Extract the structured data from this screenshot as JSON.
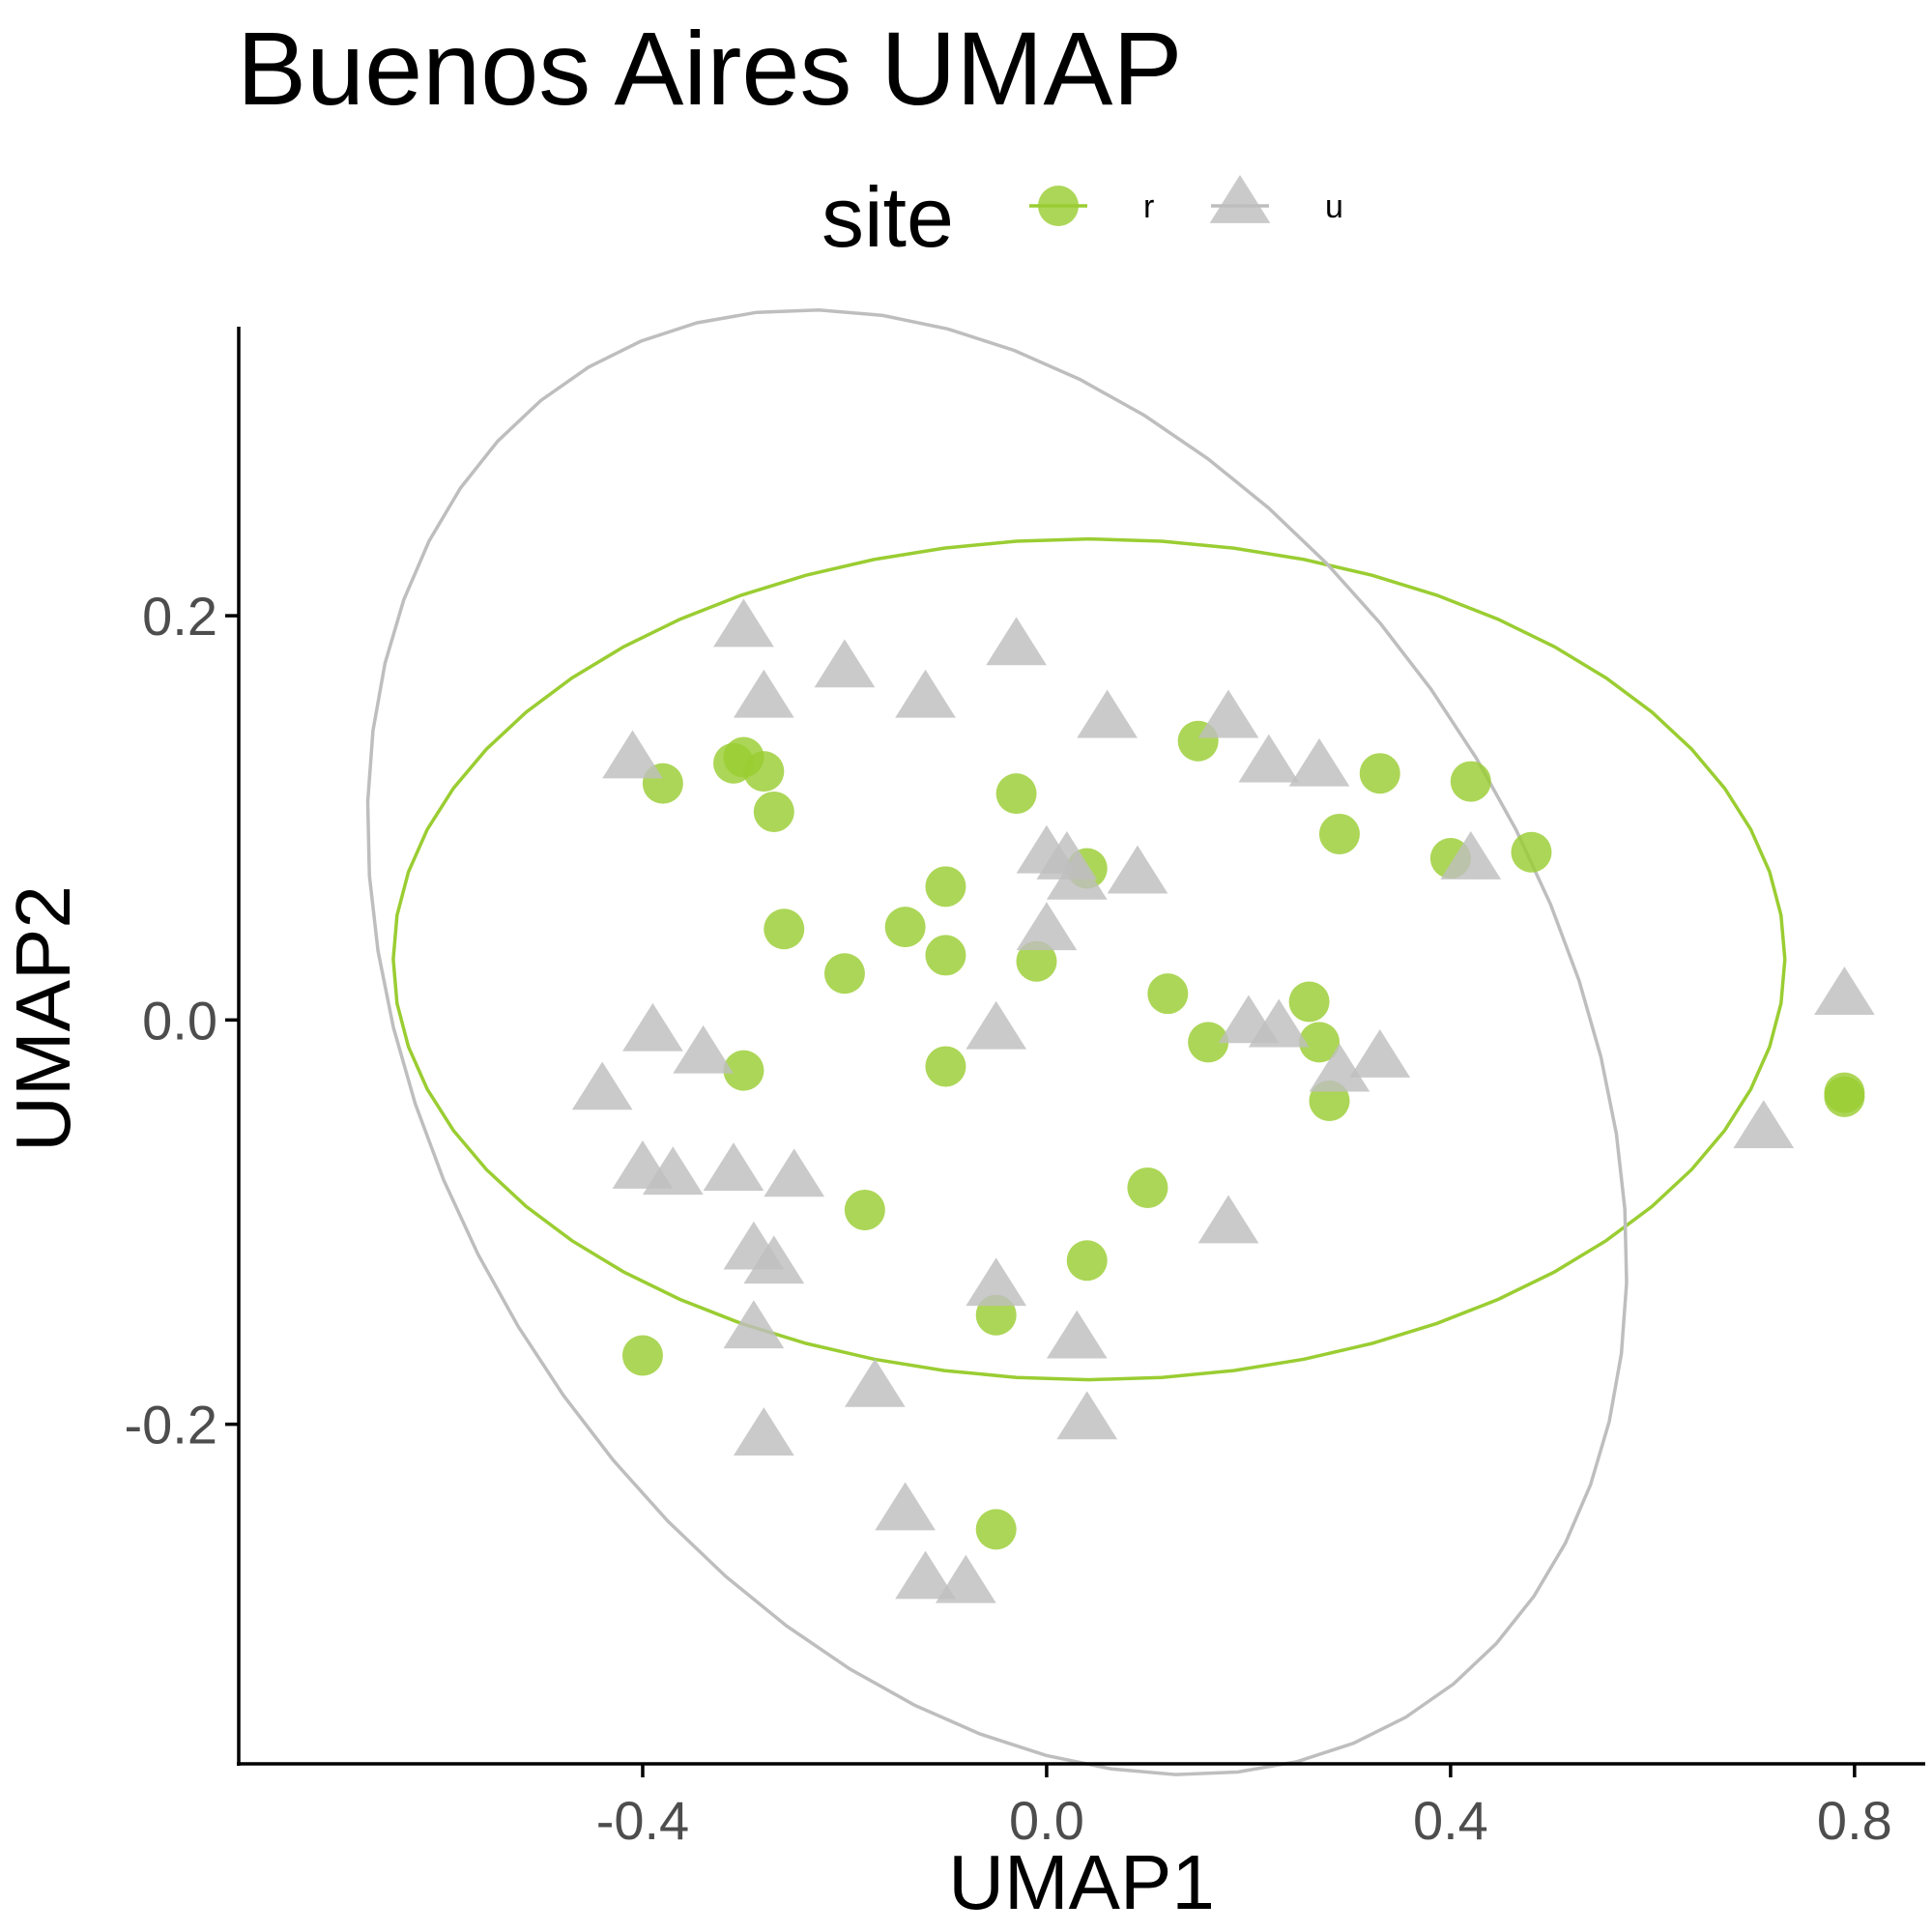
{
  "chart_data": {
    "type": "scatter",
    "title": "Buenos Aires UMAP",
    "xlabel": "UMAP1",
    "ylabel": "UMAP2",
    "xlim": [
      -0.8,
      0.87
    ],
    "ylim": [
      -0.368,
      0.343
    ],
    "x_ticks": [
      -0.4,
      0.0,
      0.4,
      0.8
    ],
    "x_tick_labels": [
      "-0.4",
      "0.0",
      "0.4",
      "0.8"
    ],
    "y_ticks": [
      -0.2,
      0.0,
      0.2
    ],
    "y_tick_labels": [
      "-0.2",
      "0.0",
      "0.2"
    ],
    "grid": false,
    "legend": {
      "title": "site",
      "placement": "top",
      "entries": [
        {
          "label": "r",
          "shape": "circle",
          "color": "#9acd32"
        },
        {
          "label": "u",
          "shape": "triangle",
          "color": "#bebebe"
        }
      ]
    },
    "series": [
      {
        "name": "r",
        "shape": "circle",
        "color": "#9acd32",
        "points": [
          {
            "x": -0.3,
            "y": 0.13
          },
          {
            "x": -0.31,
            "y": 0.127
          },
          {
            "x": -0.38,
            "y": 0.117
          },
          {
            "x": -0.28,
            "y": 0.123
          },
          {
            "x": -0.27,
            "y": 0.103
          },
          {
            "x": -0.03,
            "y": 0.112
          },
          {
            "x": 0.15,
            "y": 0.138
          },
          {
            "x": 0.33,
            "y": 0.122
          },
          {
            "x": 0.42,
            "y": 0.118
          },
          {
            "x": 0.29,
            "y": 0.092
          },
          {
            "x": 0.4,
            "y": 0.08
          },
          {
            "x": 0.48,
            "y": 0.083
          },
          {
            "x": 0.04,
            "y": 0.075
          },
          {
            "x": -0.1,
            "y": 0.066
          },
          {
            "x": -0.26,
            "y": 0.045
          },
          {
            "x": -0.14,
            "y": 0.046
          },
          {
            "x": -0.2,
            "y": 0.023
          },
          {
            "x": -0.1,
            "y": 0.032
          },
          {
            "x": -0.01,
            "y": 0.029
          },
          {
            "x": 0.12,
            "y": 0.013
          },
          {
            "x": 0.26,
            "y": 0.009
          },
          {
            "x": 0.16,
            "y": -0.011
          },
          {
            "x": 0.27,
            "y": -0.011
          },
          {
            "x": -0.3,
            "y": -0.025
          },
          {
            "x": -0.1,
            "y": -0.023
          },
          {
            "x": 0.28,
            "y": -0.04
          },
          {
            "x": 0.79,
            "y": -0.036
          },
          {
            "x": 0.79,
            "y": -0.038
          },
          {
            "x": -0.18,
            "y": -0.094
          },
          {
            "x": 0.1,
            "y": -0.083
          },
          {
            "x": 0.04,
            "y": -0.119
          },
          {
            "x": -0.05,
            "y": -0.146
          },
          {
            "x": -0.4,
            "y": -0.166
          },
          {
            "x": -0.05,
            "y": -0.252
          }
        ]
      },
      {
        "name": "u",
        "shape": "triangle",
        "color": "#bebebe",
        "points": [
          {
            "x": -0.3,
            "y": 0.195
          },
          {
            "x": -0.03,
            "y": 0.186
          },
          {
            "x": -0.2,
            "y": 0.175
          },
          {
            "x": -0.28,
            "y": 0.16
          },
          {
            "x": -0.12,
            "y": 0.16
          },
          {
            "x": 0.06,
            "y": 0.15
          },
          {
            "x": 0.18,
            "y": 0.15
          },
          {
            "x": -0.41,
            "y": 0.13
          },
          {
            "x": 0.22,
            "y": 0.128
          },
          {
            "x": 0.27,
            "y": 0.126
          },
          {
            "x": 0.0,
            "y": 0.083
          },
          {
            "x": 0.02,
            "y": 0.08
          },
          {
            "x": 0.03,
            "y": 0.07
          },
          {
            "x": 0.09,
            "y": 0.073
          },
          {
            "x": 0.42,
            "y": 0.08
          },
          {
            "x": 0.0,
            "y": 0.045
          },
          {
            "x": 0.79,
            "y": 0.013
          },
          {
            "x": -0.39,
            "y": -0.005
          },
          {
            "x": -0.05,
            "y": -0.004
          },
          {
            "x": 0.2,
            "y": -0.001
          },
          {
            "x": 0.23,
            "y": -0.003
          },
          {
            "x": -0.34,
            "y": -0.016
          },
          {
            "x": 0.33,
            "y": -0.018
          },
          {
            "x": 0.29,
            "y": -0.025
          },
          {
            "x": -0.44,
            "y": -0.034
          },
          {
            "x": 0.71,
            "y": -0.053
          },
          {
            "x": -0.4,
            "y": -0.073
          },
          {
            "x": -0.37,
            "y": -0.076
          },
          {
            "x": -0.31,
            "y": -0.074
          },
          {
            "x": -0.25,
            "y": -0.077
          },
          {
            "x": 0.18,
            "y": -0.1
          },
          {
            "x": -0.29,
            "y": -0.113
          },
          {
            "x": -0.27,
            "y": -0.12
          },
          {
            "x": -0.05,
            "y": -0.131
          },
          {
            "x": 0.03,
            "y": -0.157
          },
          {
            "x": -0.29,
            "y": -0.152
          },
          {
            "x": -0.17,
            "y": -0.181
          },
          {
            "x": 0.04,
            "y": -0.197
          },
          {
            "x": -0.28,
            "y": -0.205
          },
          {
            "x": -0.14,
            "y": -0.242
          },
          {
            "x": -0.12,
            "y": -0.276
          },
          {
            "x": -0.08,
            "y": -0.278
          }
        ]
      }
    ],
    "ellipses": [
      {
        "series": "r",
        "color": "#9acd32",
        "cx": 0.042,
        "cy": 0.03,
        "rx": 0.689,
        "ry": 0.208
      },
      {
        "series": "u",
        "color": "#bebebe",
        "cx": -0.049,
        "cy": -0.011,
        "rx": 0.637,
        "ry": 0.338,
        "angle_deg": -14
      }
    ]
  }
}
